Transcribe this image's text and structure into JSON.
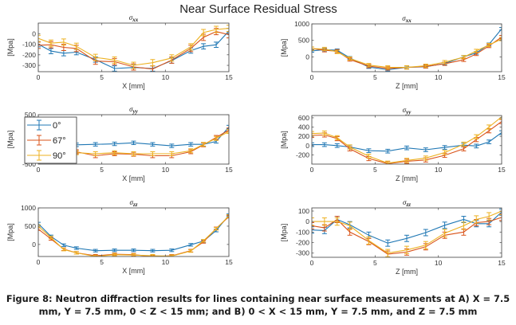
{
  "figure": {
    "suptitle": "Near Surface Residual Stress",
    "caption_line1": "Figure 8: Neutron diffraction results for lines containing near surface measurements at A) X = 7.5",
    "caption_line2": "mm, Y = 7.5 mm, 0 < Z < 15 mm; and B) 0 < X < 15 mm, Y = 7.5 mm, and Z = 7.5 mm"
  },
  "colors": {
    "0deg": "#1f77b4",
    "67deg": "#d95319",
    "90deg": "#edb120"
  },
  "chart_data": [
    {
      "id": "xx-x",
      "type": "line",
      "title_sym": "σ",
      "title_sub": "xx",
      "xlabel": "X [mm]",
      "ylabel": "[Mpa]",
      "xlim": [
        0,
        15
      ],
      "ylim": [
        -360,
        100
      ],
      "xticks": [
        0,
        5,
        10,
        15
      ],
      "yticks": [
        0,
        -100,
        -200,
        -300
      ],
      "x": [
        0,
        1,
        2,
        3,
        4.5,
        6,
        7.5,
        9,
        10.5,
        12,
        13,
        14,
        15
      ],
      "series": [
        {
          "name": "0°",
          "color_key": "0deg",
          "values": [
            -100,
            -165,
            -185,
            -175,
            -245,
            -330,
            -320,
            -330,
            -255,
            -160,
            -120,
            -105,
            25
          ],
          "err": 25
        },
        {
          "name": "67°",
          "color_key": "67deg",
          "values": [
            -110,
            -105,
            -130,
            -140,
            -260,
            -265,
            -315,
            -335,
            -250,
            -140,
            -35,
            20,
            -10
          ],
          "err": 30
        },
        {
          "name": "90°",
          "color_key": "90deg",
          "values": [
            -45,
            -90,
            -80,
            -120,
            -225,
            -250,
            -300,
            -275,
            -230,
            -125,
            10,
            40,
            50
          ],
          "err": 30
        }
      ]
    },
    {
      "id": "xx-z",
      "type": "line",
      "title_sym": "σ",
      "title_sub": "xx",
      "xlabel": "Z [mm]",
      "ylabel": "[Mpa]",
      "xlim": [
        0,
        15
      ],
      "ylim": [
        -450,
        1000
      ],
      "xticks": [
        0,
        5,
        10,
        15
      ],
      "yticks": [
        1000,
        500,
        0
      ],
      "x": [
        0,
        1,
        2,
        3,
        4.5,
        6,
        7.5,
        9,
        10.5,
        12,
        13,
        14,
        15
      ],
      "series": [
        {
          "name": "0°",
          "color_key": "0deg",
          "values": [
            180,
            220,
            200,
            -30,
            -310,
            -390,
            -320,
            -300,
            -200,
            0,
            120,
            380,
            850
          ],
          "err": 40
        },
        {
          "name": "67°",
          "color_key": "67deg",
          "values": [
            250,
            200,
            170,
            -80,
            -280,
            -350,
            -320,
            -290,
            -210,
            -90,
            90,
            330,
            600
          ],
          "err": 50
        },
        {
          "name": "90°",
          "color_key": "90deg",
          "values": [
            250,
            240,
            150,
            -50,
            -250,
            -320,
            -320,
            -270,
            -160,
            -10,
            180,
            360,
            540
          ],
          "err": 50
        }
      ]
    },
    {
      "id": "yy-x",
      "type": "line",
      "title_sym": "σ",
      "title_sub": "yy",
      "xlabel": "X [mm]",
      "ylabel": "[Mpa]",
      "xlim": [
        0,
        15
      ],
      "ylim": [
        -500,
        500
      ],
      "xticks": [
        0,
        5,
        10,
        15
      ],
      "yticks": [
        500,
        -500
      ],
      "x": [
        0,
        1,
        2,
        3,
        4.5,
        6,
        7.5,
        9,
        10.5,
        12,
        13,
        14,
        15
      ],
      "series": [
        {
          "name": "0°",
          "color_key": "0deg",
          "values": [
            -100,
            -100,
            -100,
            -110,
            -100,
            -90,
            -70,
            -100,
            -130,
            -100,
            -100,
            -40,
            250
          ],
          "err": 35
        },
        {
          "name": "67°",
          "color_key": "67deg",
          "values": [
            -250,
            -250,
            -250,
            -250,
            -330,
            -290,
            -300,
            -330,
            -330,
            -250,
            -110,
            40,
            190
          ],
          "err": 40
        },
        {
          "name": "90°",
          "color_key": "90deg",
          "values": [
            -270,
            -270,
            -270,
            -270,
            -290,
            -270,
            -290,
            -290,
            -290,
            -230,
            -100,
            20,
            160
          ],
          "err": 40
        }
      ],
      "legend": {
        "placement": "left",
        "entries": [
          "0°",
          "67°",
          "90°"
        ]
      }
    },
    {
      "id": "yy-z",
      "type": "line",
      "title_sym": "σ",
      "title_sub": "yy",
      "xlabel": "Z [mm]",
      "ylabel": "[Mpa]",
      "xlim": [
        0,
        15
      ],
      "ylim": [
        -400,
        650
      ],
      "xticks": [
        0,
        5,
        10,
        15
      ],
      "yticks": [
        600,
        400,
        200,
        0,
        -200
      ],
      "x": [
        0,
        1,
        2,
        3,
        4.5,
        6,
        7.5,
        9,
        10.5,
        12,
        13,
        14,
        15
      ],
      "series": [
        {
          "name": "0°",
          "color_key": "0deg",
          "values": [
            20,
            20,
            0,
            -30,
            -110,
            -120,
            -50,
            -90,
            -40,
            10,
            -10,
            80,
            280
          ],
          "err": 40
        },
        {
          "name": "67°",
          "color_key": "67deg",
          "values": [
            220,
            230,
            150,
            -70,
            -280,
            -390,
            -340,
            -310,
            -210,
            -70,
            130,
            320,
            520
          ],
          "err": 45
        },
        {
          "name": "90°",
          "color_key": "90deg",
          "values": [
            260,
            270,
            170,
            -30,
            -230,
            -380,
            -320,
            -270,
            -150,
            30,
            190,
            400,
            620
          ],
          "err": 45
        }
      ]
    },
    {
      "id": "zz-x",
      "type": "line",
      "title_sym": "σ",
      "title_sub": "zz",
      "xlabel": "X [mm]",
      "ylabel": "[Mpa]",
      "xlim": [
        0,
        15
      ],
      "ylim": [
        -330,
        1000
      ],
      "xticks": [
        0,
        5,
        10,
        15
      ],
      "yticks": [
        1000,
        500,
        0
      ],
      "x": [
        0,
        1,
        2,
        3,
        4.5,
        6,
        7.5,
        9,
        10.5,
        12,
        13,
        14,
        15
      ],
      "series": [
        {
          "name": "0°",
          "color_key": "0deg",
          "values": [
            570,
            220,
            -20,
            -100,
            -170,
            -160,
            -160,
            -170,
            -160,
            -10,
            90,
            380,
            800
          ],
          "err": 35
        },
        {
          "name": "67°",
          "color_key": "67deg",
          "values": [
            420,
            150,
            -130,
            -230,
            -310,
            -270,
            -280,
            -330,
            -310,
            -170,
            70,
            440,
            760
          ],
          "err": 35
        },
        {
          "name": "90°",
          "color_key": "90deg",
          "values": [
            500,
            190,
            -140,
            -230,
            -330,
            -280,
            -290,
            -310,
            -320,
            -180,
            100,
            430,
            780
          ],
          "err": 35
        }
      ]
    },
    {
      "id": "zz-z",
      "type": "line",
      "title_sym": "σ",
      "title_sub": "zz",
      "xlabel": "Z [mm]",
      "ylabel": "[Mpa]",
      "xlim": [
        0,
        15
      ],
      "ylim": [
        -340,
        130
      ],
      "xticks": [
        0,
        5,
        10,
        15
      ],
      "yticks": [
        100,
        0,
        -100,
        -200,
        -300
      ],
      "x": [
        0,
        1,
        2,
        3,
        4.5,
        6,
        7.5,
        9,
        10.5,
        12,
        13,
        14,
        15
      ],
      "series": [
        {
          "name": "0°",
          "color_key": "0deg",
          "values": [
            -80,
            -85,
            20,
            -30,
            -130,
            -205,
            -160,
            -105,
            -35,
            20,
            -20,
            -20,
            90
          ],
          "err": 30
        },
        {
          "name": "67°",
          "color_key": "67deg",
          "values": [
            -40,
            -60,
            20,
            -100,
            -190,
            -310,
            -290,
            -240,
            -130,
            -100,
            -10,
            0,
            40
          ],
          "err": 30
        },
        {
          "name": "90°",
          "color_key": "90deg",
          "values": [
            0,
            0,
            0,
            -40,
            -180,
            -300,
            -270,
            -225,
            -110,
            -40,
            20,
            50,
            100
          ],
          "err": 35
        }
      ]
    }
  ]
}
